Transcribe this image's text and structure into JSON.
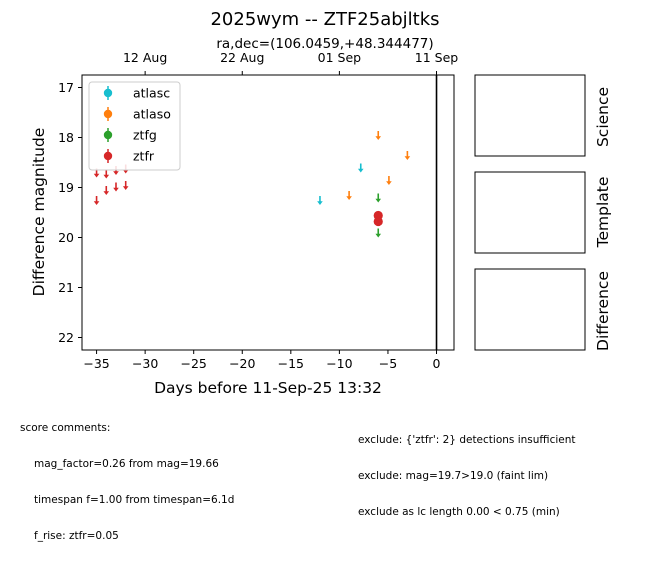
{
  "chart_data": {
    "type": "scatter",
    "title": "2025wym -- ZTF25abjltks",
    "subtitle": "ra,dec=(106.0459,+48.344477)",
    "xlabel": "Days before 11-Sep-25 13:32",
    "ylabel": "Difference magnitude",
    "xlim": [
      -36.5,
      1.8
    ],
    "ylim": [
      22.25,
      16.75
    ],
    "y_inverted": true,
    "grid": false,
    "legend_position": "top-left",
    "x_ticks": [
      -35,
      -30,
      -25,
      -20,
      -15,
      -10,
      -5,
      0
    ],
    "x_tick_labels": [
      "−35",
      "−30",
      "−25",
      "−20",
      "−15",
      "−10",
      "−5",
      "0"
    ],
    "y_ticks": [
      17,
      18,
      19,
      20,
      21,
      22
    ],
    "y_tick_labels": [
      "17",
      "18",
      "19",
      "20",
      "21",
      "22"
    ],
    "top_axis": {
      "ticks": [
        -30,
        -20,
        -10,
        0
      ],
      "labels": [
        "12 Aug",
        "22 Aug",
        "01 Sep",
        "11 Sep"
      ]
    },
    "reference_line_x": 0,
    "series": [
      {
        "name": "atlasc",
        "color": "#17becf",
        "upper_limits": [
          {
            "x": -12.0,
            "y": 19.25
          },
          {
            "x": -7.8,
            "y": 18.6
          }
        ],
        "detections": []
      },
      {
        "name": "atlaso",
        "color": "#ff7f0e",
        "upper_limits": [
          {
            "x": -9.0,
            "y": 19.15
          },
          {
            "x": -6.0,
            "y": 17.95
          },
          {
            "x": -4.9,
            "y": 18.85
          },
          {
            "x": -3.0,
            "y": 18.35
          }
        ],
        "detections": []
      },
      {
        "name": "ztfg",
        "color": "#2ca02c",
        "upper_limits": [
          {
            "x": -6.0,
            "y": 19.2
          },
          {
            "x": -6.0,
            "y": 19.9
          }
        ],
        "detections": []
      },
      {
        "name": "ztfr",
        "color": "#d62728",
        "upper_limits": [
          {
            "x": -35.0,
            "y": 18.7
          },
          {
            "x": -35.0,
            "y": 19.25
          },
          {
            "x": -34.0,
            "y": 18.72
          },
          {
            "x": -34.0,
            "y": 19.05
          },
          {
            "x": -33.0,
            "y": 18.65
          },
          {
            "x": -33.0,
            "y": 18.98
          },
          {
            "x": -32.0,
            "y": 18.62
          },
          {
            "x": -32.0,
            "y": 18.95
          }
        ],
        "detections": [
          {
            "x": -6.0,
            "y": 19.56,
            "err": 0.05
          },
          {
            "x": -6.0,
            "y": 19.68,
            "err": 0.05
          }
        ]
      }
    ]
  },
  "stamps": {
    "science_label": "Science",
    "template_label": "Template",
    "difference_label": "Difference"
  },
  "comments": {
    "header": "score comments:",
    "left_lines": [
      "mag_factor=0.26 from mag=19.66",
      "timespan f=1.00 from timespan=6.1d",
      "f_rise: ztfr=0.05"
    ],
    "right_lines": [
      "exclude: {'ztfr': 2} detections insufficient",
      "exclude: mag=19.7>19.0 (faint lim)",
      "exclude as lc length 0.00 < 0.75 (min)"
    ]
  }
}
